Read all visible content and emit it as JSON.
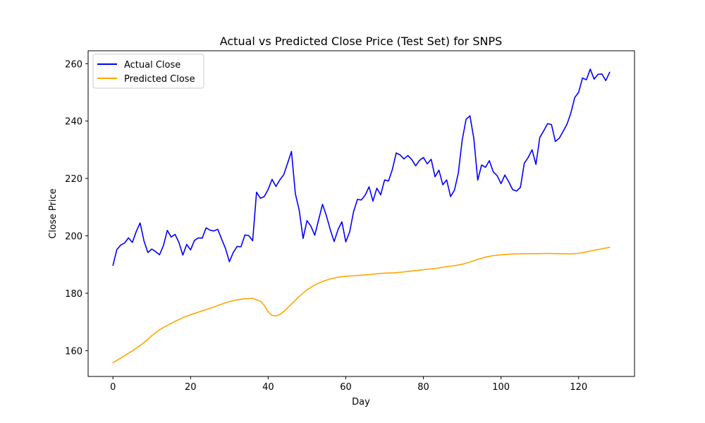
{
  "chart_data": {
    "type": "line",
    "title": "Actual vs Predicted Close Price (Test Set) for SNPS",
    "xlabel": "Day",
    "ylabel": "Close Price",
    "xlim": [
      -6.4,
      134.4
    ],
    "ylim": [
      151,
      264.5
    ],
    "xticks": [
      0,
      20,
      40,
      60,
      80,
      100,
      120
    ],
    "yticks": [
      160,
      180,
      200,
      220,
      240,
      260
    ],
    "grid": false,
    "legend_position": "upper-left",
    "series": [
      {
        "name": "Actual Close",
        "color": "#0000ff",
        "x": [
          0,
          1,
          2,
          3,
          4,
          5,
          6,
          7,
          8,
          9,
          10,
          11,
          12,
          13,
          14,
          15,
          16,
          17,
          18,
          19,
          20,
          21,
          22,
          23,
          24,
          25,
          26,
          27,
          28,
          29,
          30,
          31,
          32,
          33,
          34,
          35,
          36,
          37,
          38,
          39,
          40,
          41,
          42,
          43,
          44,
          45,
          46,
          47,
          48,
          49,
          50,
          51,
          52,
          53,
          54,
          55,
          56,
          57,
          58,
          59,
          60,
          61,
          62,
          63,
          64,
          65,
          66,
          67,
          68,
          69,
          70,
          71,
          72,
          73,
          74,
          75,
          76,
          77,
          78,
          79,
          80,
          81,
          82,
          83,
          84,
          85,
          86,
          87,
          88,
          89,
          90,
          91,
          92,
          93,
          94,
          95,
          96,
          97,
          98,
          99,
          100,
          101,
          102,
          103,
          104,
          105,
          106,
          107,
          108,
          109,
          110,
          111,
          112,
          113,
          114,
          115,
          116,
          117,
          118,
          119,
          120,
          121,
          122,
          123,
          124,
          125,
          126,
          127,
          128
        ],
        "values": [
          189.7,
          195.2,
          196.8,
          197.5,
          199.3,
          197.7,
          201.5,
          204.5,
          198.2,
          194.2,
          195.4,
          194.5,
          193.4,
          196.6,
          201.9,
          199.6,
          200.5,
          197.7,
          193.3,
          197.0,
          195.1,
          198.4,
          199.3,
          199.2,
          202.8,
          202.0,
          201.7,
          202.3,
          198.9,
          195.6,
          191.0,
          194.2,
          196.3,
          196.2,
          200.3,
          200.1,
          198.3,
          215.2,
          213.1,
          213.7,
          216.2,
          219.7,
          217.2,
          219.5,
          221.3,
          225.3,
          229.4,
          214.7,
          208.9,
          199.1,
          205.3,
          203.4,
          200.2,
          205.6,
          211.0,
          207.0,
          202.2,
          198.0,
          202.2,
          204.9,
          197.9,
          201.4,
          208.4,
          212.7,
          212.5,
          214.2,
          217.1,
          212.1,
          216.6,
          214.3,
          219.5,
          219.1,
          223.1,
          228.9,
          228.2,
          226.8,
          228.0,
          226.6,
          224.4,
          226.3,
          227.3,
          225.1,
          226.7,
          220.6,
          222.9,
          217.8,
          219.5,
          213.7,
          215.9,
          221.9,
          233.4,
          240.6,
          241.8,
          233.9,
          219.4,
          224.7,
          223.9,
          226.2,
          222.3,
          221.0,
          218.2,
          221.2,
          218.8,
          216.1,
          215.6,
          216.9,
          225.3,
          227.3,
          230.0,
          224.9,
          234.3,
          236.6,
          239.1,
          238.8,
          232.9,
          234.0,
          236.4,
          238.9,
          242.8,
          248.2,
          250.0,
          255.0,
          254.4,
          258.1,
          254.6,
          256.3,
          256.4,
          254.1,
          257.0
        ]
      },
      {
        "name": "Predicted Close",
        "color": "#ffa500",
        "x": [
          0,
          2,
          4,
          6,
          8,
          10,
          12,
          14,
          16,
          18,
          20,
          22,
          24,
          26,
          28,
          30,
          32,
          34,
          36,
          38,
          39,
          40,
          41,
          42,
          43,
          44,
          46,
          48,
          50,
          52,
          54,
          56,
          58,
          60,
          62,
          64,
          66,
          68,
          70,
          72,
          74,
          76,
          78,
          80,
          82,
          84,
          86,
          88,
          90,
          92,
          94,
          96,
          98,
          100,
          102,
          104,
          106,
          108,
          110,
          112,
          114,
          116,
          118,
          120,
          122,
          124,
          126,
          128
        ],
        "values": [
          155.8,
          157.4,
          159.1,
          160.8,
          162.8,
          165.2,
          167.3,
          168.8,
          170.2,
          171.5,
          172.5,
          173.4,
          174.3,
          175.2,
          176.2,
          177.1,
          177.7,
          178.1,
          178.2,
          177.2,
          175.8,
          173.5,
          172.3,
          172.1,
          172.6,
          173.6,
          176.2,
          178.9,
          181.2,
          182.9,
          184.1,
          185.0,
          185.6,
          185.9,
          186.1,
          186.3,
          186.5,
          186.8,
          187.0,
          187.1,
          187.3,
          187.6,
          187.9,
          188.2,
          188.5,
          188.8,
          189.3,
          189.6,
          190.1,
          190.9,
          191.8,
          192.6,
          193.1,
          193.4,
          193.6,
          193.7,
          193.8,
          193.8,
          193.8,
          193.9,
          193.8,
          193.8,
          193.7,
          193.9,
          194.4,
          195.0,
          195.5,
          196.0
        ]
      }
    ]
  }
}
